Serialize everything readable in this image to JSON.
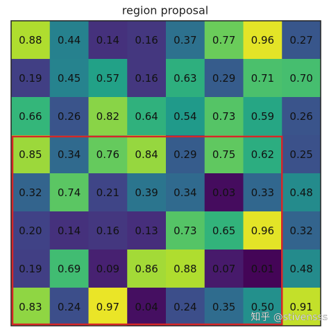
{
  "chart_data": {
    "type": "heatmap",
    "title": "region proposal",
    "values": [
      [
        0.88,
        0.44,
        0.14,
        0.16,
        0.37,
        0.77,
        0.96,
        0.27
      ],
      [
        0.19,
        0.45,
        0.57,
        0.16,
        0.63,
        0.29,
        0.71,
        0.7
      ],
      [
        0.66,
        0.26,
        0.82,
        0.64,
        0.54,
        0.73,
        0.59,
        0.26
      ],
      [
        0.85,
        0.34,
        0.76,
        0.84,
        0.29,
        0.75,
        0.62,
        0.25
      ],
      [
        0.32,
        0.74,
        0.21,
        0.39,
        0.34,
        0.03,
        0.33,
        0.48
      ],
      [
        0.2,
        0.14,
        0.16,
        0.13,
        0.73,
        0.65,
        0.96,
        0.32
      ],
      [
        0.19,
        0.69,
        0.09,
        0.86,
        0.88,
        0.07,
        0.01,
        0.48
      ],
      [
        0.83,
        0.24,
        0.97,
        0.04,
        0.24,
        0.35,
        0.5,
        0.91
      ]
    ],
    "value_labels": [
      [
        "0.88",
        "0.44",
        "0.14",
        "0.16",
        "0.37",
        "0.77",
        "0.96",
        "0.27"
      ],
      [
        "0.19",
        "0.45",
        "0.57",
        "0.16",
        "0.63",
        "0.29",
        "0.71",
        "0.70"
      ],
      [
        "0.66",
        "0.26",
        "0.82",
        "0.64",
        "0.54",
        "0.73",
        "0.59",
        "0.26"
      ],
      [
        "0.85",
        "0.34",
        "0.76",
        "0.84",
        "0.29",
        "0.75",
        "0.62",
        "0.25"
      ],
      [
        "0.32",
        "0.74",
        "0.21",
        "0.39",
        "0.34",
        "0.03",
        "0.33",
        "0.48"
      ],
      [
        "0.20",
        "0.14",
        "0.16",
        "0.13",
        "0.73",
        "0.65",
        "0.96",
        "0.32"
      ],
      [
        "0.19",
        "0.69",
        "0.09",
        "0.86",
        "0.88",
        "0.07",
        "0.01",
        "0.48"
      ],
      [
        "0.83",
        "0.24",
        "0.97",
        "0.04",
        "0.24",
        "0.35",
        "0.50",
        "0.91"
      ]
    ],
    "colormap": "viridis",
    "clim": [
      0,
      1
    ],
    "highlight": {
      "row_range": [
        3,
        7
      ],
      "col_range": [
        0,
        6
      ],
      "color": "#d62728"
    },
    "watermark": "知乎 @stivensss"
  }
}
